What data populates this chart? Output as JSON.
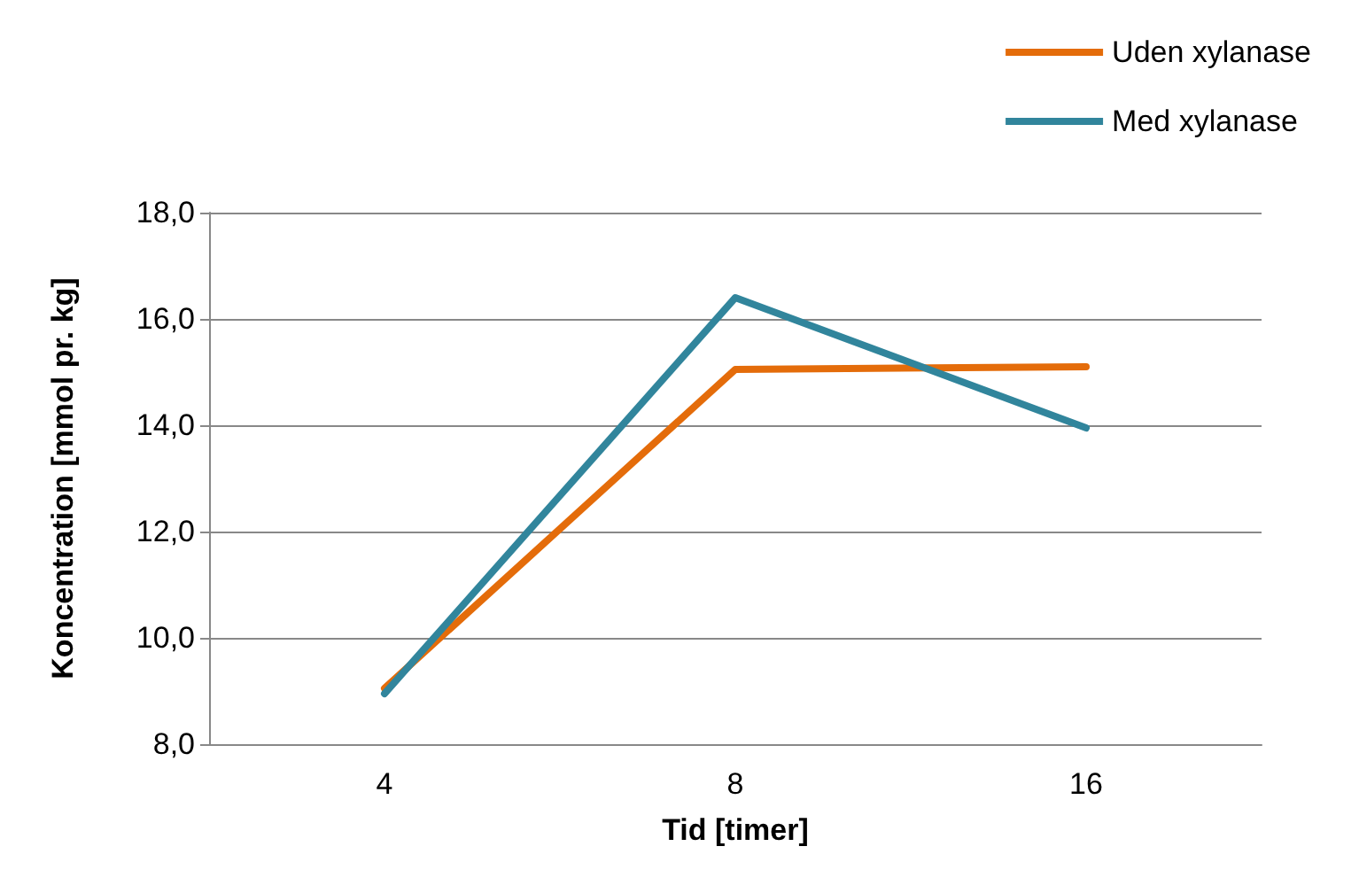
{
  "chart_data": {
    "type": "line",
    "xlabel": "Tid [timer]",
    "ylabel": "Koncentration [mmol pr. kg]",
    "categories": [
      "4",
      "8",
      "16"
    ],
    "series": [
      {
        "name": "Uden xylanase",
        "color": "#e46c0a",
        "values": [
          9.05,
          15.05,
          15.1
        ]
      },
      {
        "name": "Med xylanase",
        "color": "#31859c",
        "values": [
          8.95,
          16.4,
          13.95
        ]
      }
    ],
    "ylim": [
      8,
      18
    ],
    "yticks": [
      {
        "value": 8,
        "label": "8,0"
      },
      {
        "value": 10,
        "label": "10,0"
      },
      {
        "value": 12,
        "label": "12,0"
      },
      {
        "value": 14,
        "label": "14,0"
      },
      {
        "value": 16,
        "label": "16,0"
      },
      {
        "value": 18,
        "label": "18,0"
      }
    ],
    "grid": "y",
    "legend": "top right",
    "marker": "none",
    "line_style": "solid"
  }
}
